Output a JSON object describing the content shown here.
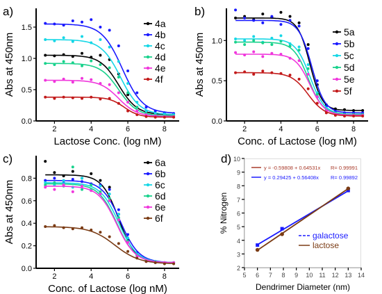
{
  "chart_data": [
    {
      "panel_label": "a)",
      "type": "scatter",
      "xlabel": "Lactose Conc. (log nM)",
      "ylabel": "Abs at 450nm",
      "xlim": [
        1,
        8.8
      ],
      "ylim": [
        0,
        1.8
      ],
      "xticks": [
        "2",
        "4",
        "6",
        "8"
      ],
      "yticks": [
        "0.0",
        "0.5",
        "1.0",
        "1.5"
      ],
      "legend_position": "right",
      "series": [
        {
          "name": "4a",
          "color": "#000000",
          "top": 1.05,
          "bottom": 0.1,
          "mid": 5.5,
          "slope": 2.0,
          "x": [
            1.5,
            2,
            2.5,
            3,
            3.5,
            4,
            4.5,
            5,
            5.5,
            6,
            6.5,
            7,
            7.5,
            8,
            8.5
          ],
          "y": [
            1.05,
            1.04,
            1.06,
            1.03,
            1.08,
            1.02,
            1.05,
            0.98,
            0.75,
            0.42,
            0.22,
            0.14,
            0.12,
            0.11,
            0.1
          ]
        },
        {
          "name": "4b",
          "color": "#1a1aff",
          "top": 1.55,
          "bottom": 0.12,
          "mid": 5.7,
          "slope": 1.8,
          "x": [
            1.5,
            2,
            2.5,
            3,
            3.5,
            4,
            4.5,
            5,
            5.5,
            6,
            6.5,
            7,
            7.5,
            8,
            8.5
          ],
          "y": [
            1.56,
            1.55,
            1.53,
            1.6,
            1.58,
            1.62,
            1.5,
            1.45,
            1.2,
            0.8,
            0.45,
            0.22,
            0.16,
            0.13,
            0.12
          ]
        },
        {
          "name": "4c",
          "color": "#16d7e6",
          "top": 1.3,
          "bottom": 0.1,
          "mid": 5.6,
          "slope": 1.9,
          "x": [
            1.5,
            2,
            2.5,
            3,
            3.5,
            4,
            4.5,
            5,
            5.5,
            6,
            6.5,
            7,
            7.5,
            8,
            8.5
          ],
          "y": [
            1.3,
            1.28,
            1.33,
            1.27,
            1.35,
            1.25,
            1.3,
            1.18,
            0.95,
            0.6,
            0.3,
            0.16,
            0.12,
            0.11,
            0.1
          ]
        },
        {
          "name": "4d",
          "color": "#18d28c",
          "top": 0.92,
          "bottom": 0.08,
          "mid": 5.5,
          "slope": 2.0,
          "x": [
            1.5,
            2,
            2.5,
            3,
            3.5,
            4,
            4.5,
            5,
            5.5,
            6,
            6.5,
            7,
            7.5,
            8,
            8.5
          ],
          "y": [
            0.92,
            0.9,
            0.95,
            0.93,
            0.88,
            0.96,
            0.9,
            0.85,
            0.7,
            0.45,
            0.22,
            0.12,
            0.09,
            0.08,
            0.08
          ]
        },
        {
          "name": "4e",
          "color": "#f036dc",
          "top": 0.65,
          "bottom": 0.07,
          "mid": 5.5,
          "slope": 2.0,
          "x": [
            1.5,
            2,
            2.5,
            3,
            3.5,
            4,
            4.5,
            5,
            5.5,
            6,
            6.5,
            7,
            7.5,
            8,
            8.5
          ],
          "y": [
            0.65,
            0.63,
            0.67,
            0.62,
            0.68,
            0.66,
            0.6,
            0.58,
            0.45,
            0.3,
            0.16,
            0.1,
            0.08,
            0.07,
            0.07
          ]
        },
        {
          "name": "4f",
          "color": "#c21a1a",
          "top": 0.38,
          "bottom": 0.06,
          "mid": 5.8,
          "slope": 2.5,
          "x": [
            1.5,
            2,
            2.5,
            3,
            3.5,
            4,
            4.5,
            5,
            5.5,
            6,
            6.5,
            7,
            7.5,
            8,
            8.5
          ],
          "y": [
            0.38,
            0.36,
            0.38,
            0.37,
            0.36,
            0.38,
            0.35,
            0.36,
            0.28,
            0.16,
            0.1,
            0.07,
            0.06,
            0.06,
            0.06
          ]
        }
      ]
    },
    {
      "panel_label": "b)",
      "type": "scatter",
      "xlabel": "Conc. of  Lactose (log nM)",
      "ylabel": "Abs at 450nm",
      "xlim": [
        1,
        8.8
      ],
      "ylim": [
        0,
        1.4
      ],
      "xticks": [
        "2",
        "4",
        "6",
        "8"
      ],
      "yticks": [
        "0.0",
        "0.5",
        "1.0"
      ],
      "legend_position": "right",
      "series": [
        {
          "name": "5a",
          "color": "#000000",
          "top": 1.28,
          "bottom": 0.13,
          "mid": 5.6,
          "slope": 3.0,
          "x": [
            1.5,
            2,
            2.5,
            3,
            3.5,
            4,
            4.5,
            5,
            5.5,
            6,
            6.5,
            7,
            7.5,
            8,
            8.5
          ],
          "y": [
            1.28,
            1.3,
            1.26,
            1.33,
            1.29,
            1.35,
            1.3,
            1.22,
            0.95,
            0.45,
            0.2,
            0.15,
            0.14,
            0.13,
            0.13
          ]
        },
        {
          "name": "5b",
          "color": "#1a1aff",
          "top": 1.25,
          "bottom": 0.1,
          "mid": 5.7,
          "slope": 2.8,
          "x": [
            1.5,
            2,
            2.5,
            3,
            3.5,
            4,
            4.5,
            5,
            5.5,
            6,
            6.5,
            7,
            7.5,
            8,
            8.5
          ],
          "y": [
            1.38,
            1.28,
            1.25,
            1.22,
            1.3,
            1.2,
            1.25,
            1.18,
            0.9,
            0.5,
            0.18,
            0.12,
            0.1,
            0.1,
            0.1
          ]
        },
        {
          "name": "5c",
          "color": "#16d7e6",
          "top": 1.02,
          "bottom": 0.08,
          "mid": 5.6,
          "slope": 2.5,
          "x": [
            1.5,
            2,
            2.5,
            3,
            3.5,
            4,
            4.5,
            5,
            5.5,
            6,
            6.5,
            7,
            7.5,
            8,
            8.5
          ],
          "y": [
            1.02,
            1.0,
            1.05,
            0.98,
            1.03,
            1.06,
            0.96,
            0.92,
            0.7,
            0.35,
            0.14,
            0.09,
            0.08,
            0.08,
            0.08
          ]
        },
        {
          "name": "5d",
          "color": "#18d28c",
          "top": 0.98,
          "bottom": 0.08,
          "mid": 5.5,
          "slope": 2.5,
          "x": [
            1.5,
            2,
            2.5,
            3,
            3.5,
            4,
            4.5,
            5,
            5.5,
            6,
            6.5,
            7,
            7.5,
            8,
            8.5
          ],
          "y": [
            0.98,
            0.95,
            1.0,
            0.97,
            0.95,
            0.99,
            0.93,
            0.88,
            0.65,
            0.33,
            0.13,
            0.09,
            0.08,
            0.08,
            0.08
          ]
        },
        {
          "name": "5e",
          "color": "#f036dc",
          "top": 0.83,
          "bottom": 0.07,
          "mid": 5.6,
          "slope": 2.5,
          "x": [
            1.5,
            2,
            2.5,
            3,
            3.5,
            4,
            4.5,
            5,
            5.5,
            6,
            6.5,
            7,
            7.5,
            8,
            8.5
          ],
          "y": [
            0.85,
            0.82,
            0.86,
            0.8,
            0.84,
            0.83,
            0.78,
            0.75,
            0.58,
            0.3,
            0.12,
            0.08,
            0.07,
            0.07,
            0.07
          ]
        },
        {
          "name": "5f",
          "color": "#c21a1a",
          "top": 0.6,
          "bottom": 0.06,
          "mid": 5.5,
          "slope": 2.2,
          "x": [
            1.5,
            2,
            2.5,
            3,
            3.5,
            4,
            4.5,
            5,
            5.5,
            6,
            6.5,
            7,
            7.5,
            8,
            8.5
          ],
          "y": [
            0.6,
            0.61,
            0.58,
            0.62,
            0.6,
            0.59,
            0.57,
            0.52,
            0.4,
            0.22,
            0.1,
            0.07,
            0.06,
            0.06,
            0.06
          ]
        }
      ]
    },
    {
      "panel_label": "c)",
      "type": "scatter",
      "xlabel": "Conc. of  Lactose (log nM)",
      "ylabel": "Abs at 450nm",
      "xlim": [
        1,
        8.8
      ],
      "ylim": [
        0,
        1.0
      ],
      "xticks": [
        "2",
        "4",
        "6",
        "8"
      ],
      "yticks": [
        "0.0",
        "0.2",
        "0.4",
        "0.6",
        "0.8"
      ],
      "legend_position": "right",
      "series": [
        {
          "name": "6a",
          "color": "#000000",
          "top": 0.83,
          "bottom": 0.05,
          "mid": 5.5,
          "slope": 2.2,
          "x": [
            1.5,
            2,
            2.5,
            3,
            3.5,
            4,
            4.5,
            5,
            5.5,
            6,
            6.5,
            7,
            7.5,
            8,
            8.5
          ],
          "y": [
            0.95,
            0.85,
            0.82,
            0.86,
            0.8,
            0.84,
            0.78,
            0.72,
            0.48,
            0.25,
            0.12,
            0.07,
            0.06,
            0.05,
            0.05
          ]
        },
        {
          "name": "6b",
          "color": "#1a1aff",
          "top": 0.78,
          "bottom": 0.05,
          "mid": 5.6,
          "slope": 2.0,
          "x": [
            1.5,
            2,
            2.5,
            3,
            3.5,
            4,
            4.5,
            5,
            5.5,
            6,
            6.5,
            7,
            7.5,
            8,
            8.5
          ],
          "y": [
            0.78,
            0.8,
            0.76,
            0.79,
            0.77,
            0.75,
            0.74,
            0.7,
            0.52,
            0.3,
            0.14,
            0.08,
            0.06,
            0.05,
            0.05
          ]
        },
        {
          "name": "6c",
          "color": "#16d7e6",
          "top": 0.76,
          "bottom": 0.05,
          "mid": 5.5,
          "slope": 2.0,
          "x": [
            1.5,
            2,
            2.5,
            3,
            3.5,
            4,
            4.5,
            5,
            5.5,
            6,
            6.5,
            7,
            7.5,
            8,
            8.5
          ],
          "y": [
            0.76,
            0.74,
            0.78,
            0.72,
            0.8,
            0.7,
            0.73,
            0.66,
            0.48,
            0.27,
            0.12,
            0.07,
            0.06,
            0.05,
            0.05
          ]
        },
        {
          "name": "6d",
          "color": "#18d28c",
          "top": 0.75,
          "bottom": 0.05,
          "mid": 5.4,
          "slope": 2.0,
          "x": [
            1.5,
            2,
            2.5,
            3,
            3.5,
            4,
            4.5,
            5,
            5.5,
            6,
            6.5,
            7,
            7.5,
            8,
            8.5
          ],
          "y": [
            0.74,
            0.76,
            0.73,
            0.9,
            0.7,
            0.74,
            0.68,
            0.62,
            0.45,
            0.24,
            0.11,
            0.07,
            0.05,
            0.05,
            0.05
          ]
        },
        {
          "name": "6e",
          "color": "#f036dc",
          "top": 0.73,
          "bottom": 0.05,
          "mid": 5.4,
          "slope": 2.0,
          "x": [
            1.5,
            2,
            2.5,
            3,
            3.5,
            4,
            4.5,
            5,
            5.5,
            6,
            6.5,
            7,
            7.5,
            8,
            8.5
          ],
          "y": [
            0.72,
            0.7,
            0.74,
            0.68,
            0.73,
            0.69,
            0.66,
            0.6,
            0.43,
            0.23,
            0.1,
            0.06,
            0.05,
            0.05,
            0.05
          ]
        },
        {
          "name": "6f",
          "color": "#7a3b14",
          "top": 0.37,
          "bottom": 0.04,
          "mid": 5.3,
          "slope": 1.5,
          "x": [
            1.5,
            2,
            2.5,
            3,
            3.5,
            4,
            4.5,
            5,
            5.5,
            6,
            6.5,
            7,
            7.5,
            8,
            8.5
          ],
          "y": [
            0.37,
            0.38,
            0.36,
            0.35,
            0.36,
            0.34,
            0.32,
            0.28,
            0.22,
            0.15,
            0.09,
            0.06,
            0.05,
            0.04,
            0.04
          ]
        }
      ]
    },
    {
      "panel_label": "d)",
      "type": "line",
      "xlabel": "Dendrimer Diameter (nm)",
      "ylabel": "% Nitrogen",
      "xlim": [
        5,
        14
      ],
      "ylim": [
        2,
        10
      ],
      "xticks": [
        "5",
        "6",
        "7",
        "8",
        "9",
        "10",
        "11",
        "12",
        "13",
        "14"
      ],
      "yticks": [
        "2",
        "3",
        "4",
        "5",
        "6",
        "7",
        "8",
        "9",
        "10"
      ],
      "legend_position": "bottom-right",
      "equations": [
        {
          "text": "y = -0.59808 + 0.64531x",
          "r": "R= 0.99991",
          "color": "#a83a2a"
        },
        {
          "text": "y = 0.29425 + 0.56408x",
          "r": "R= 0.99892",
          "color": "#1a1aff"
        }
      ],
      "series": [
        {
          "name": "galactose",
          "color": "#1a1aff",
          "marker": "square",
          "x": [
            6,
            7.9,
            13
          ],
          "y": [
            3.65,
            4.85,
            7.65
          ],
          "intercept": 0.29425,
          "slope": 0.56408
        },
        {
          "name": "lactose",
          "color": "#7a3b14",
          "marker": "circle",
          "x": [
            6,
            7.9,
            13
          ],
          "y": [
            3.3,
            4.45,
            7.8
          ],
          "intercept": -0.59808,
          "slope": 0.64531
        }
      ]
    }
  ]
}
